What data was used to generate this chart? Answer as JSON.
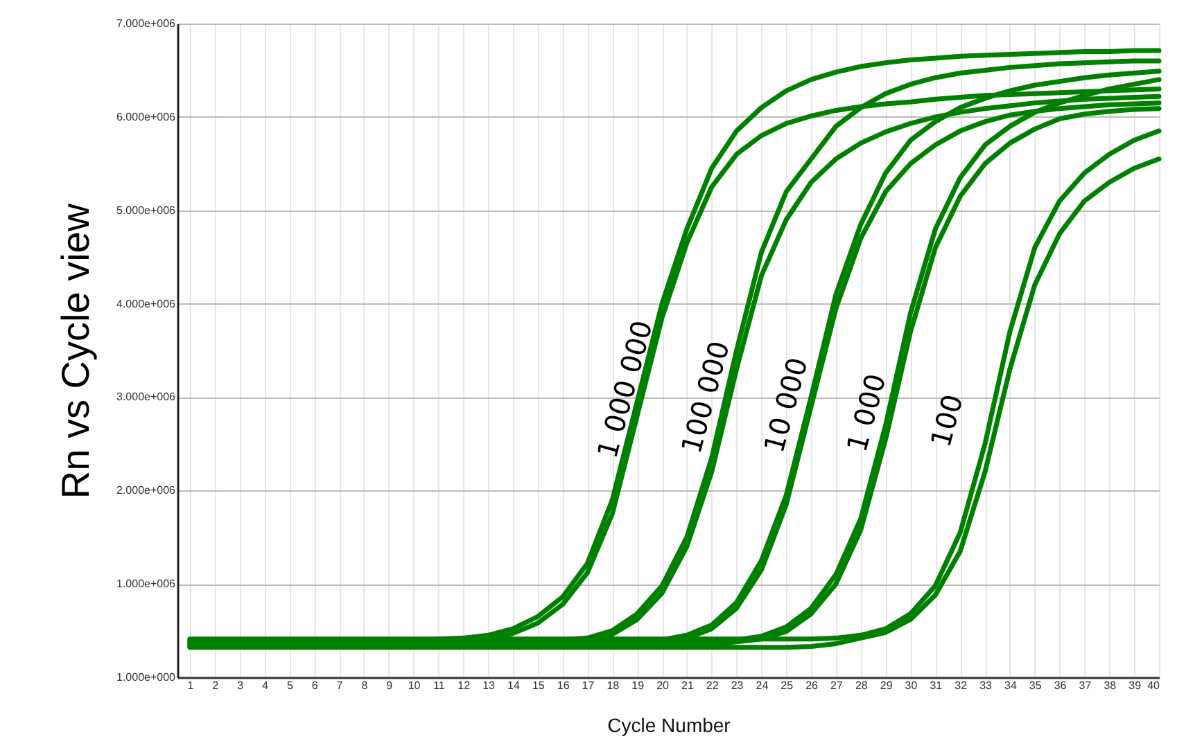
{
  "chart_data": {
    "type": "line",
    "xlabel": "Cycle Number",
    "ylabel": "Rn vs Cycle view",
    "x": [
      1,
      2,
      3,
      4,
      5,
      6,
      7,
      8,
      9,
      10,
      11,
      12,
      13,
      14,
      15,
      16,
      17,
      18,
      19,
      20,
      21,
      22,
      23,
      24,
      25,
      26,
      27,
      28,
      29,
      30,
      31,
      32,
      33,
      34,
      35,
      36,
      37,
      38,
      39,
      40
    ],
    "xlim": [
      0.5,
      40
    ],
    "xticks": [
      1,
      2,
      3,
      4,
      5,
      6,
      7,
      8,
      9,
      10,
      11,
      12,
      13,
      14,
      15,
      16,
      17,
      18,
      19,
      20,
      21,
      22,
      23,
      24,
      25,
      26,
      27,
      28,
      29,
      30,
      31,
      32,
      33,
      34,
      35,
      36,
      37,
      38,
      39,
      40
    ],
    "ylim": [
      1,
      7000000
    ],
    "yticks": [
      {
        "value": 1,
        "label": "1.000e+000"
      },
      {
        "value": 1000000,
        "label": "1.000e+006"
      },
      {
        "value": 2000000,
        "label": "2.000e+006"
      },
      {
        "value": 3000000,
        "label": "3.000e+006"
      },
      {
        "value": 4000000,
        "label": "4.000e+006"
      },
      {
        "value": 5000000,
        "label": "5.000e+006"
      },
      {
        "value": 6000000,
        "label": "6.000e+006"
      },
      {
        "value": 7000000,
        "label": "7.000e+006"
      }
    ],
    "grid": true,
    "line_style": "solid",
    "series": [
      {
        "color": "#008000",
        "values": [
          400000,
          400000,
          400000,
          400000,
          400000,
          400000,
          400000,
          400000,
          400000,
          400000,
          410000,
          420000,
          450000,
          520000,
          650000,
          860000,
          1220000,
          1900000,
          2950000,
          4000000,
          4800000,
          5450000,
          5850000,
          6100000,
          6280000,
          6400000,
          6480000,
          6540000,
          6580000,
          6610000,
          6630000,
          6650000,
          6660000,
          6670000,
          6680000,
          6690000,
          6700000,
          6700000,
          6710000,
          6710000
        ]
      },
      {
        "color": "#008000",
        "values": [
          340000,
          340000,
          340000,
          340000,
          340000,
          340000,
          340000,
          340000,
          340000,
          340000,
          340000,
          340000,
          400000,
          470000,
          580000,
          780000,
          1120000,
          1750000,
          2800000,
          3850000,
          4650000,
          5250000,
          5600000,
          5800000,
          5930000,
          6010000,
          6070000,
          6110000,
          6140000,
          6160000,
          6190000,
          6210000,
          6230000,
          6240000,
          6250000,
          6260000,
          6270000,
          6280000,
          6290000,
          6300000
        ]
      },
      {
        "color": "#008000",
        "values": [
          390000,
          390000,
          390000,
          390000,
          390000,
          390000,
          390000,
          390000,
          390000,
          390000,
          390000,
          390000,
          390000,
          390000,
          400000,
          400000,
          420000,
          500000,
          680000,
          980000,
          1500000,
          2350000,
          3500000,
          4550000,
          5200000,
          5550000,
          5900000,
          6100000,
          6250000,
          6350000,
          6420000,
          6470000,
          6500000,
          6530000,
          6550000,
          6570000,
          6580000,
          6590000,
          6600000,
          6600000
        ]
      },
      {
        "color": "#008000",
        "values": [
          350000,
          350000,
          350000,
          350000,
          350000,
          350000,
          350000,
          350000,
          350000,
          350000,
          350000,
          350000,
          350000,
          350000,
          350000,
          370000,
          400000,
          460000,
          620000,
          900000,
          1400000,
          2200000,
          3300000,
          4300000,
          4900000,
          5300000,
          5550000,
          5720000,
          5840000,
          5930000,
          6000000,
          6050000,
          6090000,
          6120000,
          6150000,
          6170000,
          6190000,
          6200000,
          6210000,
          6220000
        ]
      },
      {
        "color": "#008000",
        "values": [
          380000,
          380000,
          380000,
          380000,
          380000,
          380000,
          380000,
          380000,
          380000,
          380000,
          380000,
          380000,
          380000,
          380000,
          380000,
          380000,
          380000,
          380000,
          390000,
          400000,
          450000,
          560000,
          800000,
          1250000,
          1950000,
          3000000,
          4100000,
          4850000,
          5400000,
          5750000,
          5950000,
          6100000,
          6200000,
          6280000,
          6340000,
          6380000,
          6420000,
          6450000,
          6470000,
          6490000
        ]
      },
      {
        "color": "#008000",
        "values": [
          360000,
          360000,
          360000,
          360000,
          360000,
          360000,
          360000,
          360000,
          360000,
          360000,
          360000,
          360000,
          360000,
          360000,
          360000,
          360000,
          360000,
          360000,
          370000,
          380000,
          420000,
          520000,
          740000,
          1150000,
          1850000,
          2900000,
          3950000,
          4700000,
          5200000,
          5500000,
          5700000,
          5850000,
          5950000,
          6020000,
          6060000,
          6090000,
          6110000,
          6130000,
          6140000,
          6150000
        ]
      },
      {
        "color": "#008000",
        "values": [
          370000,
          370000,
          370000,
          370000,
          370000,
          370000,
          370000,
          370000,
          370000,
          370000,
          370000,
          370000,
          370000,
          370000,
          370000,
          370000,
          370000,
          370000,
          370000,
          370000,
          370000,
          380000,
          400000,
          440000,
          540000,
          740000,
          1100000,
          1700000,
          2700000,
          3900000,
          4800000,
          5350000,
          5700000,
          5900000,
          6050000,
          6150000,
          6230000,
          6300000,
          6350000,
          6400000
        ]
      },
      {
        "color": "#008000",
        "values": [
          330000,
          330000,
          330000,
          330000,
          330000,
          330000,
          330000,
          330000,
          330000,
          330000,
          330000,
          330000,
          330000,
          330000,
          330000,
          330000,
          330000,
          330000,
          330000,
          330000,
          330000,
          350000,
          380000,
          410000,
          490000,
          680000,
          1000000,
          1580000,
          2550000,
          3700000,
          4600000,
          5150000,
          5500000,
          5720000,
          5870000,
          5980000,
          6030000,
          6060000,
          6080000,
          6090000
        ]
      },
      {
        "color": "#008000",
        "values": [
          410000,
          410000,
          410000,
          410000,
          410000,
          410000,
          410000,
          410000,
          410000,
          410000,
          410000,
          410000,
          410000,
          410000,
          410000,
          410000,
          410000,
          410000,
          410000,
          410000,
          410000,
          410000,
          410000,
          410000,
          410000,
          410000,
          420000,
          450000,
          520000,
          680000,
          980000,
          1550000,
          2500000,
          3700000,
          4600000,
          5100000,
          5400000,
          5600000,
          5750000,
          5850000
        ]
      },
      {
        "color": "#008000",
        "values": [
          320000,
          320000,
          320000,
          320000,
          320000,
          320000,
          320000,
          320000,
          320000,
          320000,
          320000,
          320000,
          320000,
          320000,
          320000,
          320000,
          320000,
          320000,
          320000,
          320000,
          320000,
          320000,
          320000,
          320000,
          320000,
          330000,
          360000,
          420000,
          480000,
          620000,
          880000,
          1350000,
          2200000,
          3300000,
          4200000,
          4750000,
          5100000,
          5300000,
          5450000,
          5550000
        ]
      }
    ],
    "annotations": [
      "1 000 000",
      "100 000",
      "10 000",
      "1 000",
      "100"
    ]
  }
}
